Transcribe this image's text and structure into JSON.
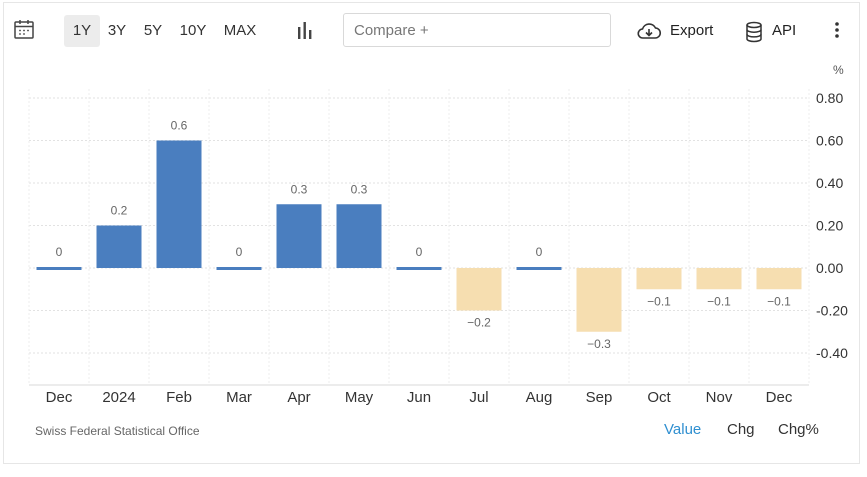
{
  "toolbar": {
    "calendar_icon": "calendar-icon",
    "ranges": [
      {
        "label": "1Y",
        "active": true
      },
      {
        "label": "3Y",
        "active": false
      },
      {
        "label": "5Y",
        "active": false
      },
      {
        "label": "10Y",
        "active": false
      },
      {
        "label": "MAX",
        "active": false
      }
    ],
    "chart_type_icon": "bar-chart-icon",
    "compare_placeholder": "Compare +",
    "export_label": "Export",
    "export_icon": "cloud-download-icon",
    "api_label": "API",
    "api_icon": "database-icon",
    "more_icon": "vertical-dots-icon"
  },
  "chart_data": {
    "type": "bar",
    "unit_label": "%",
    "categories": [
      "Dec",
      "2024",
      "Feb",
      "Mar",
      "Apr",
      "May",
      "Jun",
      "Jul",
      "Aug",
      "Sep",
      "Oct",
      "Nov",
      "Dec"
    ],
    "values": [
      0,
      0.2,
      0.6,
      0,
      0.3,
      0.3,
      0,
      -0.2,
      0,
      -0.3,
      -0.1,
      -0.1,
      -0.1
    ],
    "data_labels": [
      "0",
      "0.2",
      "0.6",
      "0",
      "0.3",
      "0.3",
      "0",
      "−0.2",
      "0",
      "−0.3",
      "−0.1",
      "−0.1",
      "−0.1"
    ],
    "y_ticks": [
      "0.80",
      "0.60",
      "0.40",
      "0.20",
      "0.00",
      "-0.20",
      "-0.40"
    ],
    "ylim": [
      -0.55,
      0.8
    ],
    "grid": true,
    "positive_color": "#4a7ebf",
    "negative_color": "#f6deb0"
  },
  "footer": {
    "source": "Swiss Federal Statistical Office",
    "modes": [
      {
        "label": "Value",
        "active": true
      },
      {
        "label": "Chg",
        "active": false
      },
      {
        "label": "Chg%",
        "active": false
      }
    ],
    "active_color": "#2f8fd0"
  }
}
